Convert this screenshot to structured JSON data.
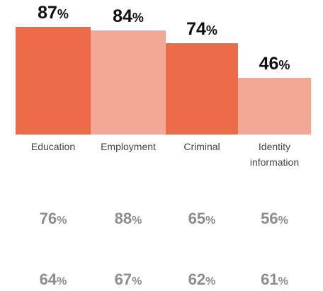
{
  "chart_data": {
    "type": "bar",
    "categories": [
      "Education",
      "Employment",
      "Criminal",
      "Identity information"
    ],
    "category_labels": [
      [
        "Education"
      ],
      [
        "Employment"
      ],
      [
        "Criminal"
      ],
      [
        "Identity",
        "information"
      ]
    ],
    "values": [
      87,
      84,
      74,
      46
    ],
    "value_suffix": "%",
    "bar_colors": [
      "#ec6c4a",
      "#f3a895",
      "#ec6c4a",
      "#f3a895"
    ],
    "extra_rows": [
      [
        76,
        88,
        65,
        56
      ],
      [
        64,
        67,
        62,
        61
      ]
    ],
    "ylim": [
      0,
      100
    ],
    "grid": false,
    "legend": "none"
  }
}
